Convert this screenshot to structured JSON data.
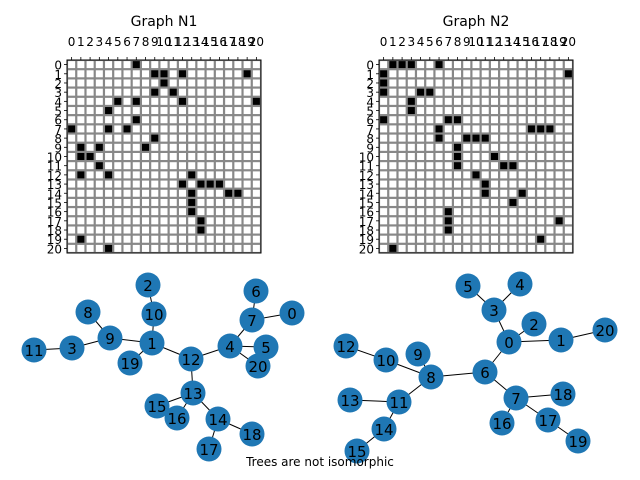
{
  "figure": {
    "caption": "Trees are not isomorphic"
  },
  "chart_data": [
    {
      "type": "heatmap",
      "title": "Graph N1",
      "size": 21,
      "x_ticks": [
        "0",
        "1",
        "2",
        "3",
        "4",
        "5",
        "6",
        "7",
        "8",
        "9",
        "10",
        "11",
        "12",
        "13",
        "14",
        "15",
        "16",
        "17",
        "18",
        "19",
        "20"
      ],
      "y_ticks": [
        "0",
        "1",
        "2",
        "3",
        "4",
        "5",
        "6",
        "7",
        "8",
        "9",
        "10",
        "11",
        "12",
        "13",
        "14",
        "15",
        "16",
        "17",
        "18",
        "19",
        "20"
      ],
      "grid": true,
      "cell_colors": {
        "filled": "#000000",
        "empty": "#ffffff",
        "grid": "#888888"
      },
      "edges": [
        [
          1,
          9
        ],
        [
          1,
          10
        ],
        [
          1,
          12
        ],
        [
          1,
          19
        ],
        [
          2,
          10
        ],
        [
          3,
          9
        ],
        [
          3,
          11
        ],
        [
          4,
          7
        ],
        [
          4,
          5
        ],
        [
          4,
          20
        ],
        [
          4,
          12
        ],
        [
          6,
          7
        ],
        [
          7,
          0
        ],
        [
          8,
          9
        ],
        [
          12,
          13
        ],
        [
          13,
          15
        ],
        [
          13,
          16
        ],
        [
          13,
          14
        ],
        [
          14,
          17
        ],
        [
          14,
          18
        ]
      ]
    },
    {
      "type": "heatmap",
      "title": "Graph N2",
      "size": 21,
      "x_ticks": [
        "0",
        "1",
        "2",
        "3",
        "4",
        "5",
        "6",
        "7",
        "8",
        "9",
        "10",
        "11",
        "12",
        "13",
        "14",
        "15",
        "16",
        "17",
        "18",
        "19",
        "20"
      ],
      "y_ticks": [
        "0",
        "1",
        "2",
        "3",
        "4",
        "5",
        "6",
        "7",
        "8",
        "9",
        "10",
        "11",
        "12",
        "13",
        "14",
        "15",
        "16",
        "17",
        "18",
        "19",
        "20"
      ],
      "grid": true,
      "cell_colors": {
        "filled": "#000000",
        "empty": "#ffffff",
        "grid": "#888888"
      },
      "edges": [
        [
          0,
          1
        ],
        [
          0,
          2
        ],
        [
          0,
          3
        ],
        [
          0,
          6
        ],
        [
          1,
          20
        ],
        [
          3,
          4
        ],
        [
          3,
          5
        ],
        [
          6,
          7
        ],
        [
          6,
          8
        ],
        [
          7,
          16
        ],
        [
          7,
          17
        ],
        [
          7,
          18
        ],
        [
          8,
          9
        ],
        [
          8,
          10
        ],
        [
          8,
          11
        ],
        [
          10,
          12
        ],
        [
          11,
          13
        ],
        [
          11,
          14
        ],
        [
          14,
          15
        ],
        [
          17,
          19
        ]
      ]
    }
  ],
  "trees": {
    "node_color": "#1f77b4",
    "edge_color": "#000000",
    "n1_nodes": [
      "0",
      "1",
      "2",
      "3",
      "4",
      "5",
      "6",
      "7",
      "8",
      "9",
      "10",
      "11",
      "12",
      "13",
      "14",
      "15",
      "16",
      "17",
      "18",
      "19",
      "20"
    ],
    "n2_nodes": [
      "0",
      "1",
      "2",
      "3",
      "4",
      "5",
      "6",
      "7",
      "8",
      "9",
      "10",
      "11",
      "12",
      "13",
      "14",
      "15",
      "16",
      "17",
      "18",
      "19",
      "20"
    ]
  }
}
